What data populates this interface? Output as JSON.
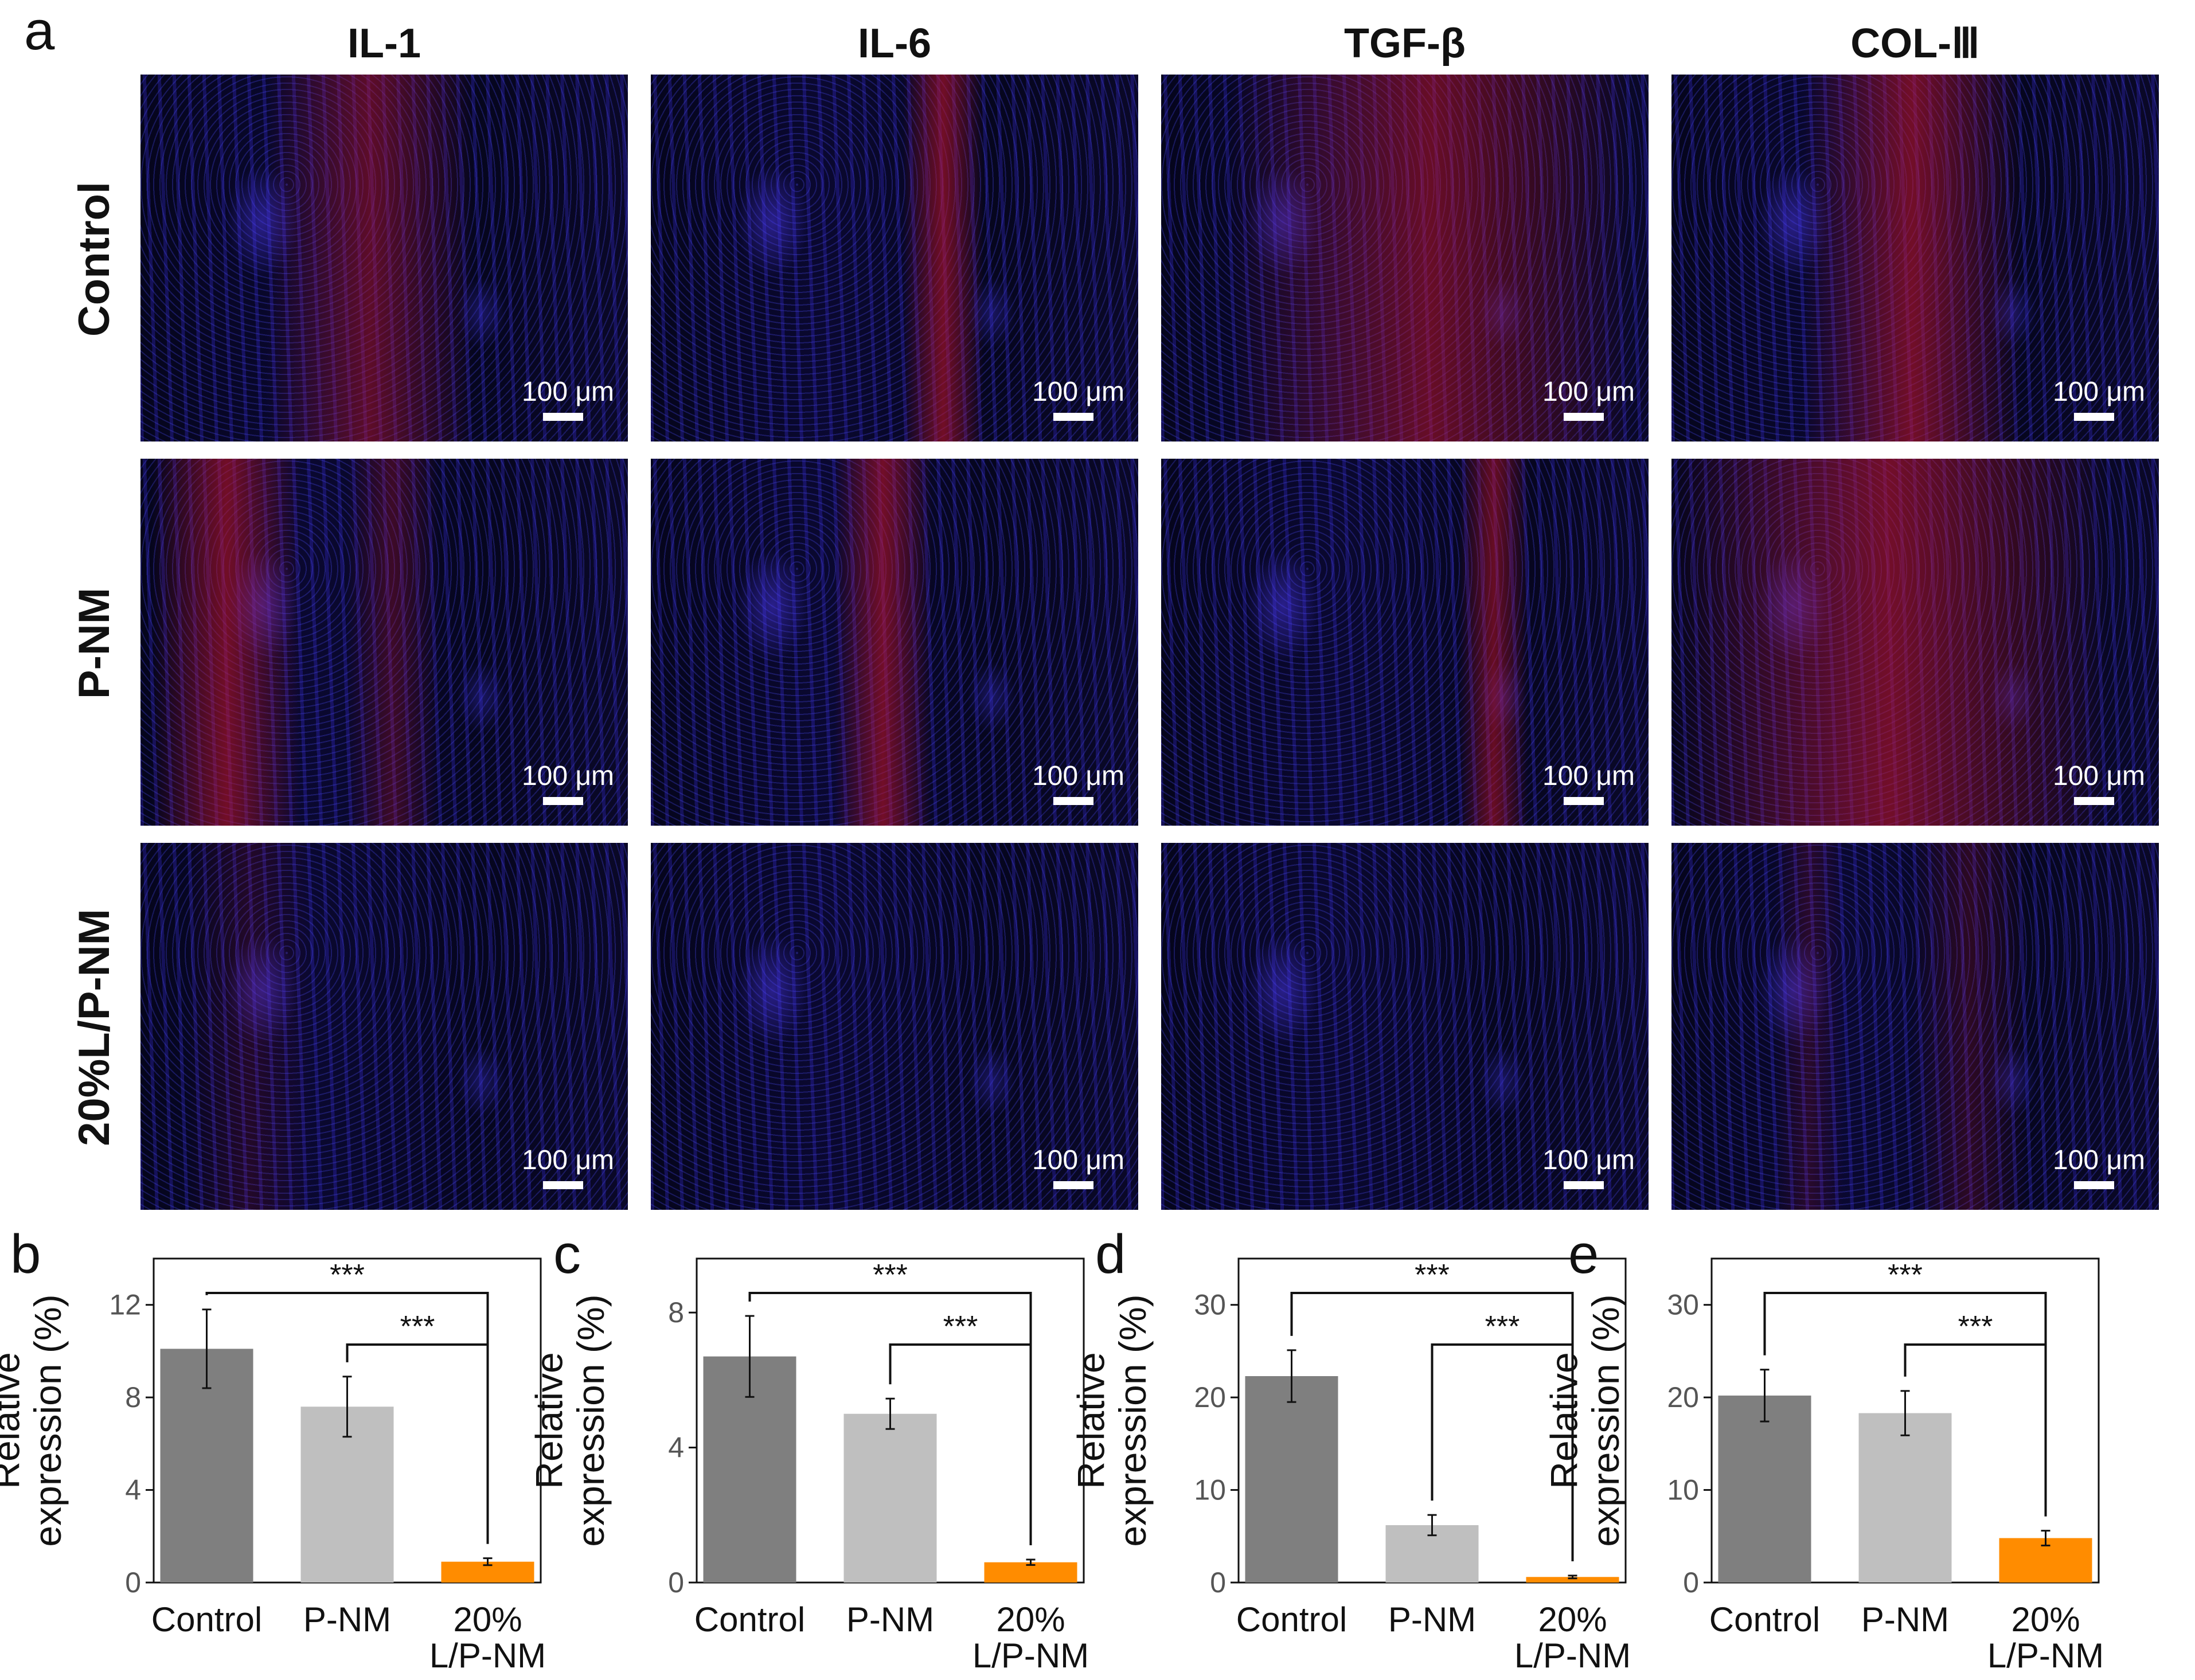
{
  "panel_a": {
    "label": "a",
    "columns": [
      "IL-1",
      "IL-6",
      "TGF-β",
      "COL-Ⅲ"
    ],
    "rows": [
      "Control",
      "P-NM",
      "20%L/P-NM"
    ],
    "scale_bar": "100 μm"
  },
  "colors": {
    "control_bar": "#7f7f7f",
    "pnm_bar": "#bfbfbf",
    "lpnm_bar": "#ff8c00",
    "nuclei_stain": "#3a2cff",
    "target_stain": "#d01830"
  },
  "chart_data": [
    {
      "panel": "b",
      "type": "bar",
      "categories": [
        "Control",
        "P-NM",
        "20%\nL/P-NM"
      ],
      "values": [
        10.1,
        7.6,
        0.9
      ],
      "errors": [
        1.7,
        1.3,
        0.15
      ],
      "ylabel": "Relative\nexpression (%)",
      "ylim": [
        0,
        14
      ],
      "yticks": [
        0,
        4,
        8,
        12
      ],
      "significance": [
        {
          "from": 0,
          "to": 2,
          "label": "***"
        },
        {
          "from": 1,
          "to": 2,
          "label": "***"
        }
      ]
    },
    {
      "panel": "c",
      "type": "bar",
      "categories": [
        "Control",
        "P-NM",
        "20%\nL/P-NM"
      ],
      "values": [
        6.7,
        5.0,
        0.6
      ],
      "errors": [
        1.2,
        0.45,
        0.08
      ],
      "ylabel": "Relative\nexpression (%)",
      "ylim": [
        0,
        9.6
      ],
      "yticks": [
        0,
        4,
        8
      ],
      "significance": [
        {
          "from": 0,
          "to": 2,
          "label": "***"
        },
        {
          "from": 1,
          "to": 2,
          "label": "***"
        }
      ]
    },
    {
      "panel": "d",
      "type": "bar",
      "categories": [
        "Control",
        "P-NM",
        "20%\nL/P-NM"
      ],
      "values": [
        22.3,
        6.2,
        0.6
      ],
      "errors": [
        2.8,
        1.1,
        0.15
      ],
      "ylabel": "Relative\nexpression (%)",
      "ylim": [
        0,
        35
      ],
      "yticks": [
        0,
        10,
        20,
        30
      ],
      "significance": [
        {
          "from": 0,
          "to": 2,
          "label": "***"
        },
        {
          "from": 1,
          "to": 2,
          "label": "***"
        }
      ]
    },
    {
      "panel": "e",
      "type": "bar",
      "categories": [
        "Control",
        "P-NM",
        "20%\nL/P-NM"
      ],
      "values": [
        20.2,
        18.3,
        4.8
      ],
      "errors": [
        2.8,
        2.4,
        0.8
      ],
      "ylabel": "Relative\nexpression (%)",
      "ylim": [
        0,
        35
      ],
      "yticks": [
        0,
        10,
        20,
        30
      ],
      "significance": [
        {
          "from": 0,
          "to": 2,
          "label": "***"
        },
        {
          "from": 1,
          "to": 2,
          "label": "***"
        }
      ]
    }
  ]
}
